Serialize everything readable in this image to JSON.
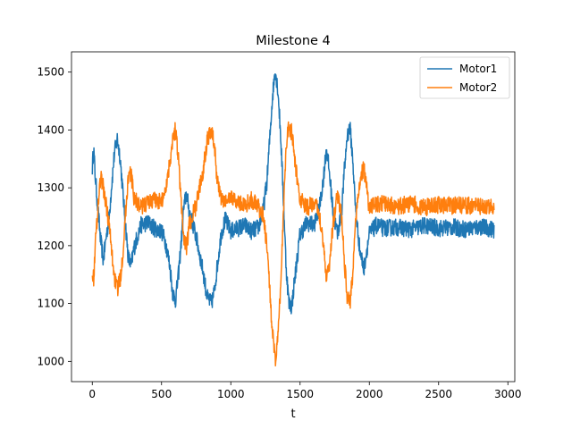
{
  "chart_data": {
    "type": "line",
    "title": "Milestone 4",
    "xlabel": "t",
    "ylabel": "",
    "xlim": [
      -150,
      3050
    ],
    "ylim": [
      965,
      1535
    ],
    "xticks": [
      0,
      500,
      1000,
      1500,
      2000,
      2500,
      3000
    ],
    "xtick_labels": [
      "0",
      "500",
      "1000",
      "1500",
      "2000",
      "2500",
      "3000"
    ],
    "yticks": [
      1000,
      1100,
      1200,
      1300,
      1400,
      1500
    ],
    "ytick_labels": [
      "1000",
      "1100",
      "1200",
      "1300",
      "1400",
      "1500"
    ],
    "grid": false,
    "legend_position": "top-right",
    "series": [
      {
        "name": "Motor1",
        "color": "#1f77b4",
        "x": [
          0,
          10,
          20,
          40,
          60,
          80,
          100,
          120,
          140,
          160,
          180,
          200,
          220,
          240,
          260,
          280,
          300,
          350,
          400,
          450,
          500,
          530,
          560,
          580,
          600,
          620,
          640,
          660,
          680,
          700,
          750,
          800,
          830,
          860,
          880,
          900,
          930,
          960,
          1000,
          1050,
          1100,
          1150,
          1200,
          1230,
          1260,
          1280,
          1300,
          1320,
          1340,
          1360,
          1380,
          1400,
          1420,
          1440,
          1460,
          1500,
          1550,
          1600,
          1640,
          1670,
          1690,
          1710,
          1740,
          1770,
          1800,
          1820,
          1840,
          1860,
          1880,
          1900,
          1930,
          1960,
          2000,
          2050,
          2100,
          2200,
          2300,
          2400,
          2500,
          2600,
          2700,
          2800,
          2900
        ],
        "values": [
          1335,
          1370,
          1325,
          1265,
          1210,
          1175,
          1215,
          1245,
          1305,
          1360,
          1385,
          1355,
          1295,
          1235,
          1180,
          1165,
          1195,
          1235,
          1240,
          1230,
          1225,
          1205,
          1165,
          1120,
          1105,
          1145,
          1200,
          1265,
          1290,
          1260,
          1215,
          1155,
          1110,
          1100,
          1120,
          1160,
          1220,
          1245,
          1225,
          1230,
          1235,
          1225,
          1232,
          1255,
          1310,
          1380,
          1455,
          1505,
          1470,
          1390,
          1280,
          1160,
          1100,
          1095,
          1140,
          1220,
          1240,
          1235,
          1265,
          1320,
          1370,
          1330,
          1255,
          1220,
          1260,
          1330,
          1390,
          1405,
          1350,
          1265,
          1195,
          1160,
          1220,
          1235,
          1230,
          1232,
          1228,
          1235,
          1230,
          1232,
          1228,
          1233,
          1228
        ]
      },
      {
        "name": "Motor2",
        "color": "#ff7f0e",
        "x": [
          0,
          10,
          20,
          40,
          60,
          80,
          100,
          120,
          140,
          160,
          180,
          200,
          220,
          240,
          260,
          280,
          300,
          350,
          400,
          450,
          500,
          530,
          560,
          580,
          600,
          620,
          640,
          660,
          680,
          700,
          750,
          800,
          830,
          860,
          880,
          900,
          930,
          960,
          1000,
          1050,
          1100,
          1150,
          1200,
          1230,
          1260,
          1280,
          1300,
          1320,
          1340,
          1360,
          1380,
          1400,
          1420,
          1440,
          1460,
          1500,
          1550,
          1600,
          1640,
          1670,
          1690,
          1710,
          1740,
          1770,
          1800,
          1820,
          1840,
          1860,
          1880,
          1900,
          1930,
          1960,
          2000,
          2050,
          2100,
          2200,
          2300,
          2400,
          2500,
          2600,
          2700,
          2800,
          2900
        ],
        "values": [
          1160,
          1140,
          1195,
          1265,
          1320,
          1300,
          1270,
          1240,
          1190,
          1145,
          1125,
          1140,
          1185,
          1255,
          1320,
          1325,
          1285,
          1265,
          1275,
          1280,
          1275,
          1300,
          1345,
          1385,
          1400,
          1360,
          1280,
          1215,
          1195,
          1235,
          1270,
          1330,
          1385,
          1400,
          1375,
          1320,
          1280,
          1275,
          1285,
          1275,
          1270,
          1280,
          1265,
          1255,
          1200,
          1130,
          1050,
          1000,
          1040,
          1130,
          1260,
          1380,
          1405,
          1395,
          1350,
          1280,
          1265,
          1275,
          1255,
          1200,
          1145,
          1165,
          1240,
          1290,
          1250,
          1170,
          1115,
          1100,
          1150,
          1245,
          1310,
          1335,
          1265,
          1270,
          1272,
          1268,
          1273,
          1266,
          1271,
          1269,
          1270,
          1268,
          1267
        ]
      }
    ]
  }
}
